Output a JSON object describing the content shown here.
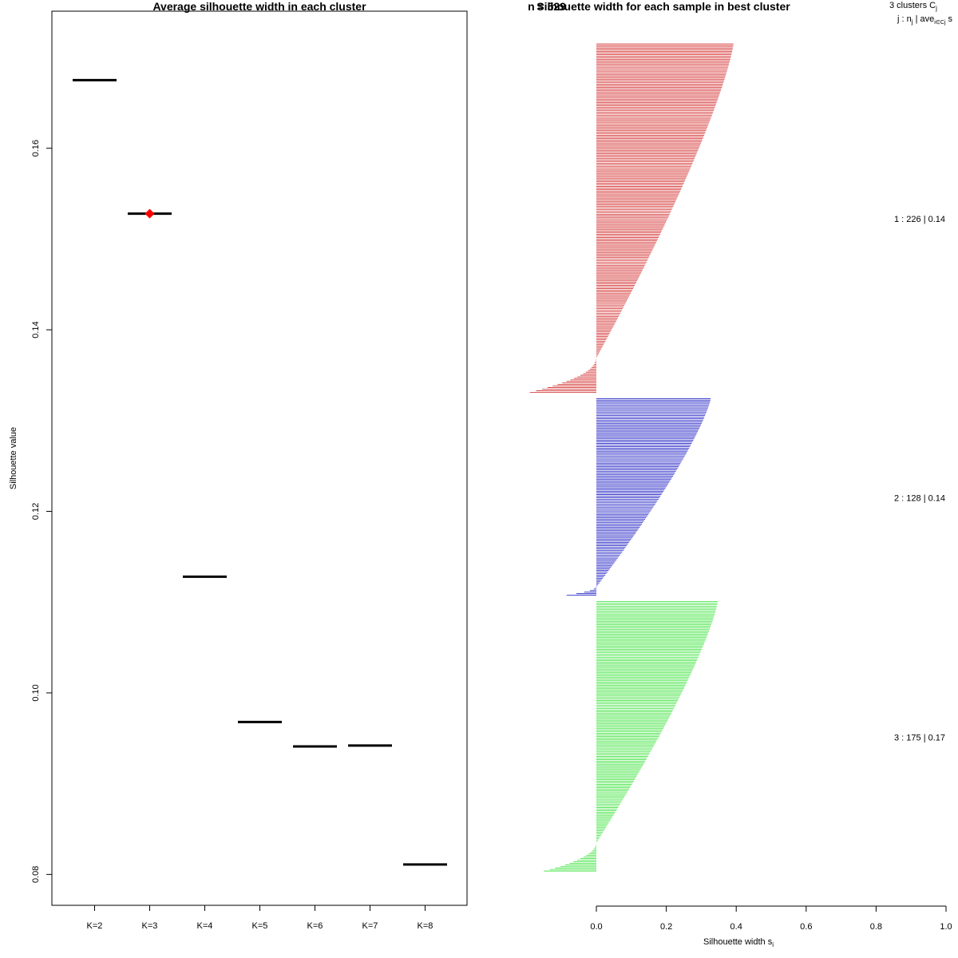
{
  "chart_data": [
    {
      "type": "scatter",
      "title": "Average silhouette width in each cluster",
      "xlabel": "",
      "ylabel": "Silhouette value",
      "categories": [
        "K=2",
        "K=3",
        "K=4",
        "K=5",
        "K=6",
        "K=7",
        "K=8"
      ],
      "values": [
        0.1675,
        0.1528,
        0.1128,
        0.0968,
        0.0941,
        0.0942,
        0.0811
      ],
      "best_index": 1,
      "highlight_color": "#ff0000",
      "yticks": [
        "0.08",
        "0.10",
        "0.12",
        "0.14",
        "0.16"
      ],
      "ylim": [
        0.0766,
        0.1751
      ]
    },
    {
      "type": "bar",
      "title": "Silhouette width for each sample in best cluster",
      "overlay_text": "n = 529",
      "xlabel": "Silhouette width s",
      "xlabel_subscript": "i",
      "xticks": [
        "0.0",
        "0.2",
        "0.4",
        "0.6",
        "0.8",
        "1.0"
      ],
      "xlim": [
        0,
        1
      ],
      "legend_header_line1": "3  clusters  C",
      "legend_header_sub1": "j",
      "legend_header_line2": "j :  n",
      "legend_header_sub2a": "j",
      "legend_header_line2b": " | ave",
      "legend_header_sub2b": "i∈Cj",
      "legend_header_line2c": "  s",
      "clusters": [
        {
          "label": "1 :  226  |  0.14",
          "n": 226,
          "color": "#d02020",
          "max": 0.39,
          "top_min": -0.19,
          "neg_frac": 0.1
        },
        {
          "label": "2 :  128  |  0.14",
          "n": 128,
          "color": "#1010c0",
          "max": 0.325,
          "top_min": -0.085,
          "neg_frac": 0.05
        },
        {
          "label": "3 :  175  |  0.17",
          "n": 175,
          "color": "#30e030",
          "max": 0.345,
          "top_min": -0.15,
          "neg_frac": 0.11
        }
      ]
    }
  ]
}
